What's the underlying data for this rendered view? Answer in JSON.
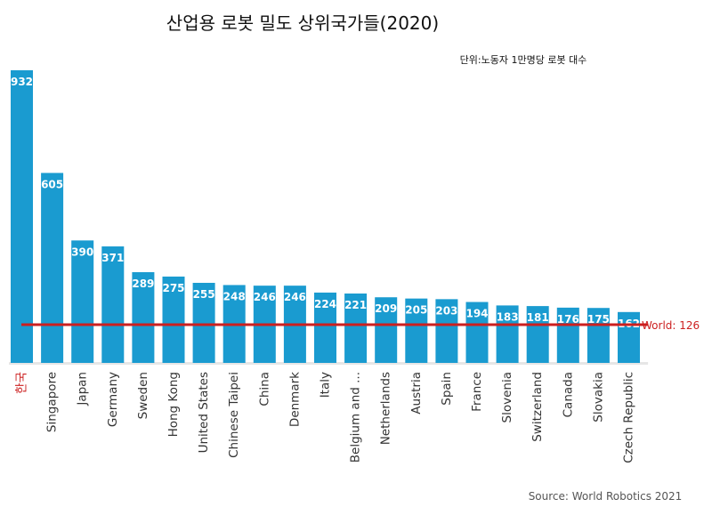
{
  "chart_data": {
    "type": "bar",
    "title": "산업용 로봇 밀도 상위국가들(2020)",
    "unit_note": "단위:노동자 1만명당 로봇 대수",
    "source": "Source: World Robotics 2021",
    "categories": [
      "한국",
      "Singapore",
      "Japan",
      "Germany",
      "Sweden",
      "Hong Kong",
      "United States",
      "Chinese Taipei",
      "China",
      "Denmark",
      "Italy",
      "Belgium and ...",
      "Netherlands",
      "Austria",
      "Spain",
      "France",
      "Slovenia",
      "Switzerland",
      "Canada",
      "Slovakia",
      "Czech Republic"
    ],
    "values": [
      932,
      605,
      390,
      371,
      289,
      275,
      255,
      248,
      246,
      246,
      224,
      221,
      209,
      205,
      203,
      194,
      183,
      181,
      176,
      175,
      162
    ],
    "highlight_category": "한국",
    "reference_line": {
      "label": "World: 126",
      "value": 126
    },
    "ylim": [
      0,
      932
    ],
    "xlabel": "",
    "ylabel": "",
    "colors": {
      "bar": "#1a9bd0",
      "reference": "#cc1f1f",
      "highlight_label": "#cc1f1f",
      "label": "#333333",
      "value_label": "#ffffff"
    }
  }
}
